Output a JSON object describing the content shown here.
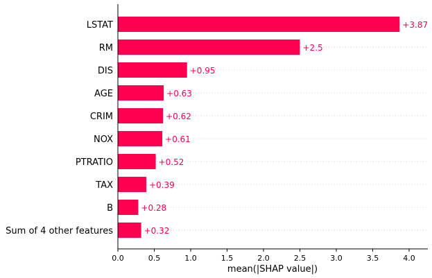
{
  "chart_data": {
    "type": "bar",
    "orientation": "horizontal",
    "categories": [
      "LSTAT",
      "RM",
      "DIS",
      "AGE",
      "CRIM",
      "NOX",
      "PTRATIO",
      "TAX",
      "B",
      "Sum of 4 other features"
    ],
    "values": [
      3.87,
      2.5,
      0.95,
      0.63,
      0.62,
      0.61,
      0.52,
      0.39,
      0.28,
      0.32
    ],
    "value_labels": [
      "+3.87",
      "+2.5",
      "+0.95",
      "+0.63",
      "+0.62",
      "+0.61",
      "+0.52",
      "+0.39",
      "+0.28",
      "+0.32"
    ],
    "title": "",
    "xlabel": "mean(|SHAP value|)",
    "ylabel": "",
    "xlim": [
      0,
      4.25
    ],
    "x_ticks": [
      0.0,
      0.5,
      1.0,
      1.5,
      2.0,
      2.5,
      3.0,
      3.5,
      4.0
    ],
    "x_tick_labels": [
      "0.0",
      "0.5",
      "1.0",
      "1.5",
      "2.0",
      "2.5",
      "3.0",
      "3.5",
      "4.0"
    ],
    "grid": "dotted horizontal row lines",
    "legend": "none",
    "colors": {
      "bar": "#ff0051",
      "value_text": "#ff0051",
      "axis": "#000000",
      "grid": "#cccccc"
    }
  }
}
